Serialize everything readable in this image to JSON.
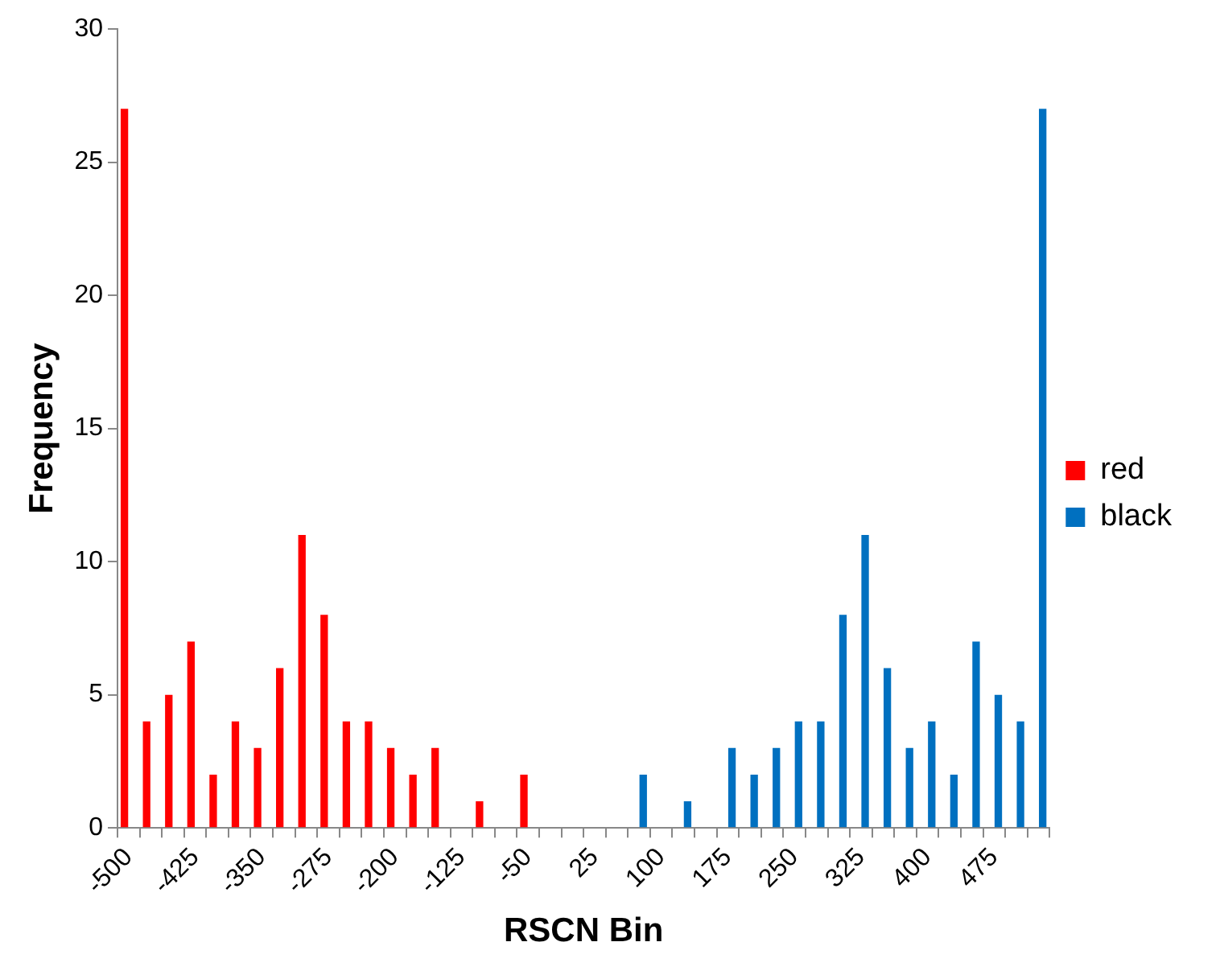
{
  "chart_data": {
    "type": "bar",
    "xlabel": "RSCN Bin",
    "ylabel": "Frequency",
    "categories": [
      "-500",
      null,
      null,
      "-425",
      null,
      null,
      "-350",
      null,
      null,
      "-275",
      null,
      null,
      "-200",
      null,
      null,
      "-125",
      null,
      null,
      "-50",
      null,
      null,
      "25",
      null,
      null,
      "100",
      null,
      null,
      "175",
      null,
      null,
      "250",
      null,
      null,
      "325",
      null,
      null,
      "400",
      null,
      null,
      "475",
      null,
      null
    ],
    "series": [
      {
        "name": "red",
        "color": "#ff0000",
        "values": [
          27,
          4,
          5,
          7,
          2,
          4,
          3,
          6,
          11,
          8,
          4,
          4,
          3,
          2,
          3,
          null,
          1,
          null,
          2,
          null,
          null,
          null,
          null,
          null,
          null,
          null,
          null,
          null,
          null,
          null,
          null,
          null,
          null,
          null,
          null,
          null,
          null,
          null,
          null,
          null,
          null,
          null
        ]
      },
      {
        "name": "black",
        "color": "#0070c0",
        "values": [
          null,
          null,
          null,
          null,
          null,
          null,
          null,
          null,
          null,
          null,
          null,
          null,
          null,
          null,
          null,
          null,
          null,
          null,
          null,
          null,
          null,
          null,
          null,
          2,
          null,
          1,
          null,
          3,
          2,
          3,
          4,
          4,
          8,
          11,
          6,
          3,
          4,
          2,
          7,
          5,
          4,
          27
        ]
      }
    ],
    "ylim": [
      0,
      30
    ],
    "yticks": [
      0,
      5,
      10,
      15,
      20,
      25,
      30
    ],
    "grid": false,
    "legend": "right"
  }
}
